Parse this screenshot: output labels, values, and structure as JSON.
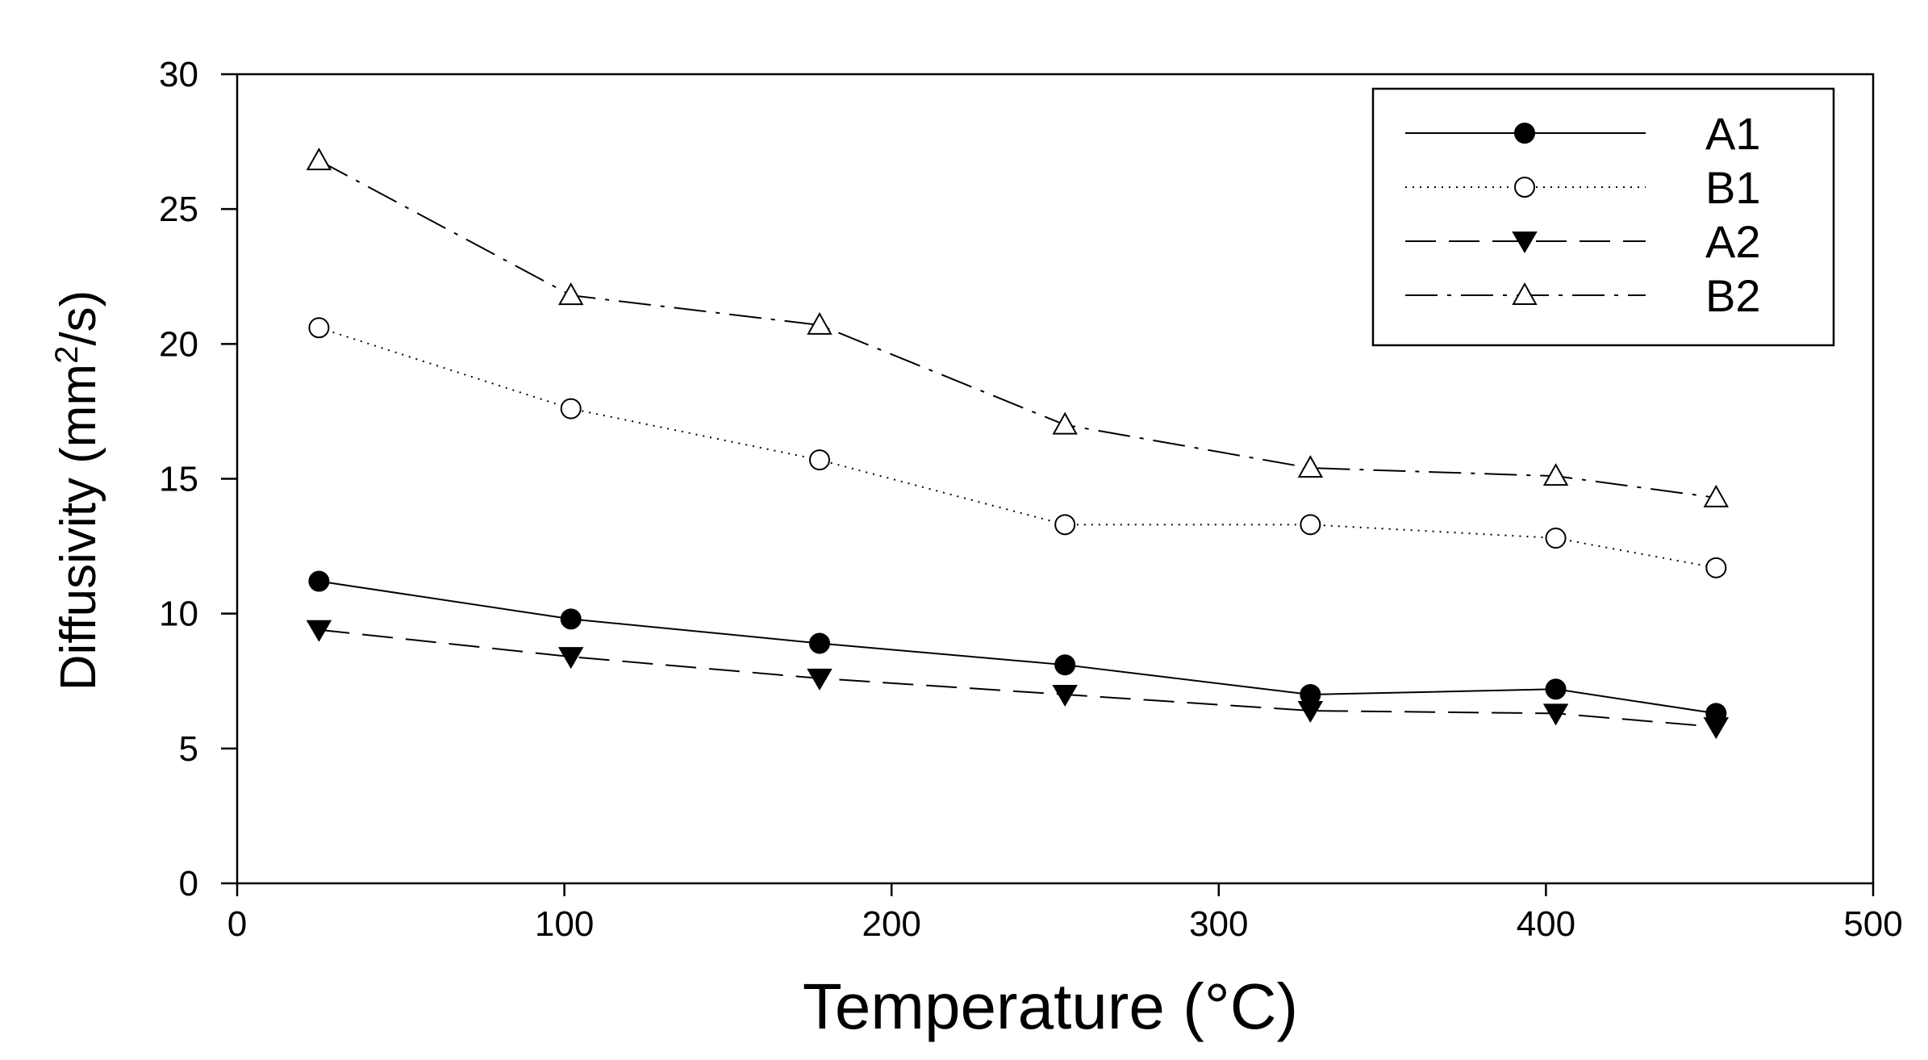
{
  "chart_data": {
    "type": "line",
    "title": "",
    "xlabel": "Temperature (°C)",
    "ylabel": {
      "prefix": "Diffusivity (mm",
      "superscript": "2",
      "suffix": "/s)"
    },
    "xlim": [
      0,
      500
    ],
    "ylim": [
      0,
      30
    ],
    "xticks": [
      0,
      100,
      200,
      300,
      400,
      500
    ],
    "yticks": [
      0,
      5,
      10,
      15,
      20,
      25,
      30
    ],
    "grid": false,
    "legend_position": "top-right",
    "x": [
      25,
      102,
      178,
      253,
      328,
      403,
      452
    ],
    "series": [
      {
        "name": "A1",
        "marker": "filled-circle",
        "line": "solid",
        "values": [
          11.2,
          9.8,
          8.9,
          8.1,
          7.0,
          7.2,
          6.3
        ]
      },
      {
        "name": "B1",
        "marker": "open-circle",
        "line": "dotted",
        "values": [
          20.6,
          17.6,
          15.7,
          13.3,
          13.3,
          12.8,
          11.7
        ]
      },
      {
        "name": "A2",
        "marker": "filled-triangle-down",
        "line": "dashed",
        "values": [
          9.4,
          8.4,
          7.6,
          7.0,
          6.4,
          6.3,
          5.8
        ]
      },
      {
        "name": "B2",
        "marker": "open-triangle-up",
        "line": "dash-dot",
        "values": [
          26.8,
          21.8,
          20.7,
          17.0,
          15.4,
          15.1,
          14.3
        ]
      }
    ]
  }
}
